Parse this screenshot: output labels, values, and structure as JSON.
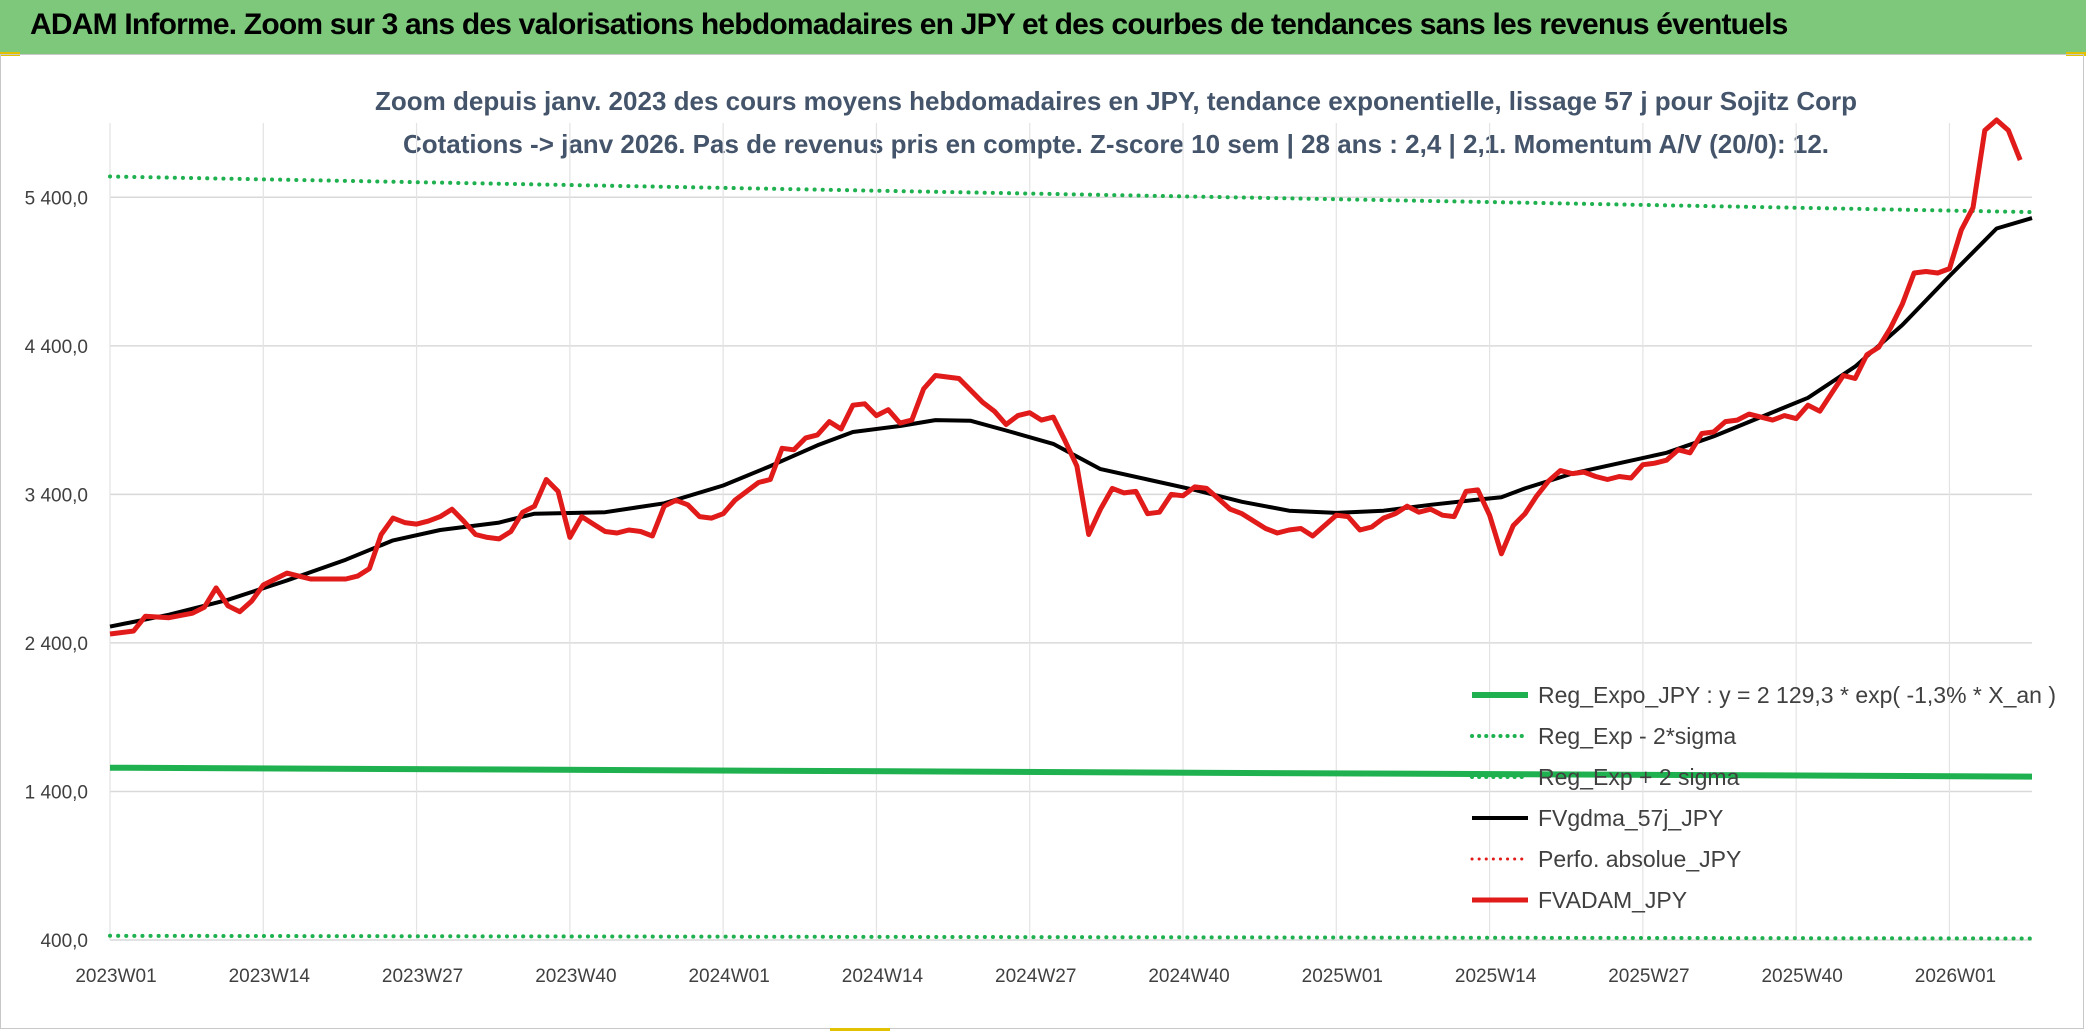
{
  "header": {
    "title": "ADAM Informe. Zoom sur 3 ans des valorisations hebdomadaires en JPY et des courbes de tendances sans les revenus éventuels"
  },
  "chart_data": {
    "type": "line",
    "title": "Zoom depuis janv. 2023 des cours moyens hebdomadaires en JPY, tendance exponentielle, lissage 57 j pour Sojitz Corp",
    "subtitle": "Cotations -> janv 2026. Pas de revenus pris en compte. Z-score 10 sem | 28 ans : 2,4 | 2,1. Momentum A/V (20/0): 12.",
    "ylim": [
      400,
      5900
    ],
    "yticks": [
      400,
      1400,
      2400,
      3400,
      4400,
      5400
    ],
    "ytick_labels": [
      "400,0",
      "1 400,0",
      "2 400,0",
      "3 400,0",
      "4 400,0",
      "5 400,0"
    ],
    "x_count": 164,
    "xtick_index": [
      0,
      13,
      26,
      39,
      52,
      65,
      78,
      91,
      104,
      117,
      130,
      143,
      156
    ],
    "xtick_labels": [
      "2023W01",
      "2023W14",
      "2023W27",
      "2023W40",
      "2024W01",
      "2024W14",
      "2024W27",
      "2024W40",
      "2025W01",
      "2025W14",
      "2025W27",
      "2025W40",
      "2026W01"
    ],
    "series": [
      {
        "name": "Reg_Expo_JPY : y = 2 129,3 * exp( -1,3% *  X_an )",
        "color": "#1fb14f",
        "style": "solid",
        "width": 6,
        "points": [
          [
            0,
            1560
          ],
          [
            163,
            1500
          ]
        ]
      },
      {
        "name": "Reg_Exp - 2*sigma",
        "color": "#1fb14f",
        "style": "dotted",
        "width": 4,
        "points": [
          [
            0,
            5540
          ],
          [
            163,
            5300
          ]
        ]
      },
      {
        "name": "Reg_Exp + 2 sigma",
        "color": "#1fb14f",
        "style": "dotted",
        "width": 4,
        "points": [
          [
            0,
            428
          ],
          [
            163,
            410
          ]
        ]
      },
      {
        "name": "FVgdma_57j_JPY",
        "color": "#000000",
        "style": "solid",
        "width": 4,
        "points": [
          [
            0,
            2510
          ],
          [
            5,
            2590
          ],
          [
            10,
            2690
          ],
          [
            15,
            2820
          ],
          [
            20,
            2960
          ],
          [
            24,
            3090
          ],
          [
            28,
            3160
          ],
          [
            33,
            3210
          ],
          [
            36,
            3270
          ],
          [
            42,
            3280
          ],
          [
            47,
            3340
          ],
          [
            52,
            3460
          ],
          [
            56,
            3590
          ],
          [
            60,
            3730
          ],
          [
            63,
            3820
          ],
          [
            67,
            3860
          ],
          [
            70,
            3900
          ],
          [
            73,
            3895
          ],
          [
            76,
            3830
          ],
          [
            80,
            3740
          ],
          [
            84,
            3570
          ],
          [
            88,
            3500
          ],
          [
            92,
            3430
          ],
          [
            96,
            3350
          ],
          [
            100,
            3290
          ],
          [
            104,
            3275
          ],
          [
            108,
            3290
          ],
          [
            112,
            3330
          ],
          [
            116,
            3365
          ],
          [
            118,
            3380
          ],
          [
            120,
            3440
          ],
          [
            124,
            3540
          ],
          [
            128,
            3610
          ],
          [
            132,
            3680
          ],
          [
            136,
            3790
          ],
          [
            140,
            3920
          ],
          [
            144,
            4050
          ],
          [
            148,
            4260
          ],
          [
            152,
            4540
          ],
          [
            156,
            4870
          ],
          [
            160,
            5190
          ],
          [
            163,
            5260
          ]
        ]
      },
      {
        "name": "Perfo. absolue_JPY",
        "color": "#e11a1a",
        "style": "dotted",
        "width": 3,
        "points": []
      },
      {
        "name": "FVADAM_JPY",
        "color": "#e11a1a",
        "style": "solid",
        "width": 5,
        "points": [
          [
            0,
            2460
          ],
          [
            2,
            2480
          ],
          [
            3,
            2580
          ],
          [
            5,
            2570
          ],
          [
            7,
            2600
          ],
          [
            8,
            2640
          ],
          [
            9,
            2770
          ],
          [
            10,
            2650
          ],
          [
            11,
            2610
          ],
          [
            12,
            2680
          ],
          [
            13,
            2790
          ],
          [
            15,
            2870
          ],
          [
            16,
            2850
          ],
          [
            17,
            2830
          ],
          [
            19,
            2830
          ],
          [
            20,
            2830
          ],
          [
            21,
            2850
          ],
          [
            22,
            2900
          ],
          [
            23,
            3130
          ],
          [
            24,
            3240
          ],
          [
            25,
            3210
          ],
          [
            26,
            3200
          ],
          [
            27,
            3220
          ],
          [
            28,
            3250
          ],
          [
            29,
            3300
          ],
          [
            30,
            3220
          ],
          [
            31,
            3130
          ],
          [
            32,
            3110
          ],
          [
            33,
            3100
          ],
          [
            34,
            3150
          ],
          [
            35,
            3280
          ],
          [
            36,
            3320
          ],
          [
            37,
            3500
          ],
          [
            38,
            3420
          ],
          [
            39,
            3110
          ],
          [
            40,
            3250
          ],
          [
            41,
            3200
          ],
          [
            42,
            3150
          ],
          [
            43,
            3140
          ],
          [
            44,
            3160
          ],
          [
            45,
            3150
          ],
          [
            46,
            3120
          ],
          [
            47,
            3320
          ],
          [
            48,
            3360
          ],
          [
            49,
            3330
          ],
          [
            50,
            3250
          ],
          [
            51,
            3240
          ],
          [
            52,
            3270
          ],
          [
            53,
            3360
          ],
          [
            54,
            3420
          ],
          [
            55,
            3480
          ],
          [
            56,
            3500
          ],
          [
            57,
            3710
          ],
          [
            58,
            3700
          ],
          [
            59,
            3780
          ],
          [
            60,
            3800
          ],
          [
            61,
            3890
          ],
          [
            62,
            3840
          ],
          [
            63,
            4000
          ],
          [
            64,
            4010
          ],
          [
            65,
            3930
          ],
          [
            66,
            3970
          ],
          [
            67,
            3880
          ],
          [
            68,
            3900
          ],
          [
            69,
            4110
          ],
          [
            70,
            4200
          ],
          [
            71,
            4190
          ],
          [
            72,
            4180
          ],
          [
            73,
            4100
          ],
          [
            74,
            4020
          ],
          [
            75,
            3960
          ],
          [
            76,
            3870
          ],
          [
            77,
            3930
          ],
          [
            78,
            3950
          ],
          [
            79,
            3900
          ],
          [
            80,
            3920
          ],
          [
            81,
            3760
          ],
          [
            82,
            3590
          ],
          [
            83,
            3130
          ],
          [
            84,
            3300
          ],
          [
            85,
            3440
          ],
          [
            86,
            3410
          ],
          [
            87,
            3420
          ],
          [
            88,
            3270
          ],
          [
            89,
            3280
          ],
          [
            90,
            3400
          ],
          [
            91,
            3390
          ],
          [
            92,
            3450
          ],
          [
            93,
            3440
          ],
          [
            94,
            3370
          ],
          [
            95,
            3300
          ],
          [
            96,
            3270
          ],
          [
            97,
            3220
          ],
          [
            98,
            3170
          ],
          [
            99,
            3140
          ],
          [
            100,
            3160
          ],
          [
            101,
            3170
          ],
          [
            102,
            3120
          ],
          [
            103,
            3190
          ],
          [
            104,
            3260
          ],
          [
            105,
            3250
          ],
          [
            106,
            3160
          ],
          [
            107,
            3180
          ],
          [
            108,
            3240
          ],
          [
            109,
            3270
          ],
          [
            110,
            3320
          ],
          [
            111,
            3280
          ],
          [
            112,
            3300
          ],
          [
            113,
            3260
          ],
          [
            114,
            3250
          ],
          [
            115,
            3420
          ],
          [
            116,
            3430
          ],
          [
            117,
            3260
          ],
          [
            118,
            3000
          ],
          [
            119,
            3190
          ],
          [
            120,
            3270
          ],
          [
            121,
            3390
          ],
          [
            122,
            3490
          ],
          [
            123,
            3560
          ],
          [
            124,
            3540
          ],
          [
            125,
            3550
          ],
          [
            126,
            3520
          ],
          [
            127,
            3500
          ],
          [
            128,
            3520
          ],
          [
            129,
            3510
          ],
          [
            130,
            3600
          ],
          [
            131,
            3610
          ],
          [
            132,
            3630
          ],
          [
            133,
            3700
          ],
          [
            134,
            3680
          ],
          [
            135,
            3810
          ],
          [
            136,
            3820
          ],
          [
            137,
            3890
          ],
          [
            138,
            3900
          ],
          [
            139,
            3940
          ],
          [
            140,
            3920
          ],
          [
            141,
            3900
          ],
          [
            142,
            3930
          ],
          [
            143,
            3910
          ],
          [
            144,
            4000
          ],
          [
            145,
            3960
          ],
          [
            146,
            4080
          ],
          [
            147,
            4200
          ],
          [
            148,
            4180
          ],
          [
            149,
            4340
          ],
          [
            150,
            4390
          ],
          [
            151,
            4520
          ],
          [
            152,
            4680
          ],
          [
            153,
            4890
          ],
          [
            154,
            4900
          ],
          [
            155,
            4890
          ],
          [
            156,
            4920
          ],
          [
            157,
            5180
          ],
          [
            158,
            5330
          ],
          [
            159,
            5850
          ],
          [
            160,
            5920
          ],
          [
            161,
            5850
          ],
          [
            162,
            5650
          ]
        ]
      }
    ],
    "legend_position": "bottom-right"
  }
}
